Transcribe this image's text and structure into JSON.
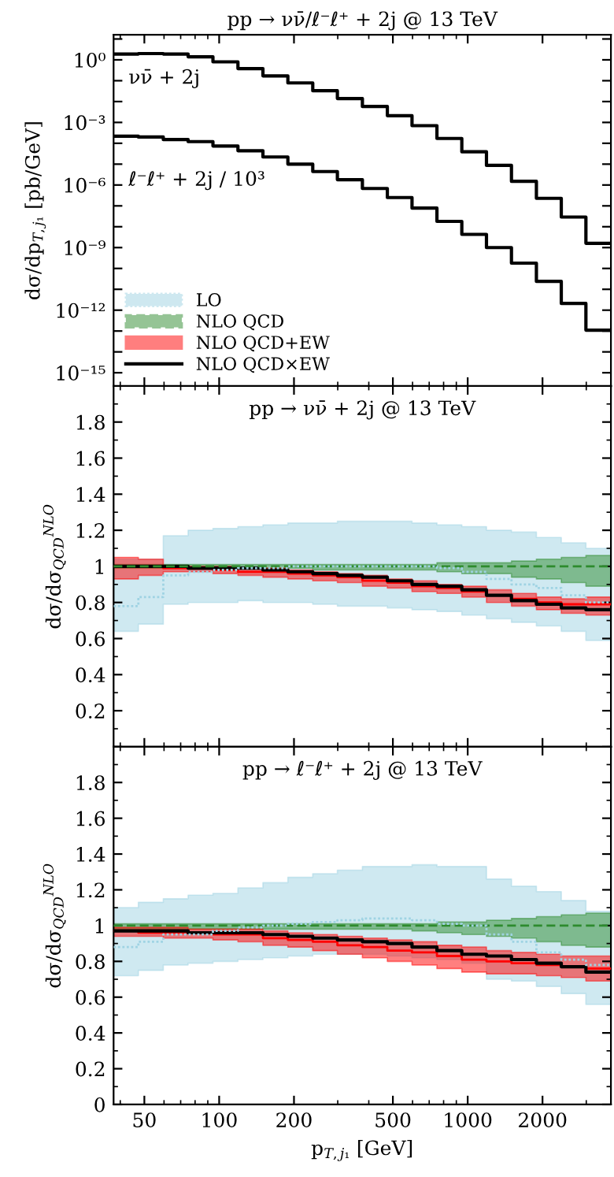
{
  "chart_data": [
    {
      "type": "step",
      "title": "pp → νν̄/ℓ⁻ℓ⁺ + 2j @ 13 TeV",
      "ylabel": "dσ/dp$_{T,j₁}$ [pb/GeV]",
      "log": "xy",
      "tick_labels": "y",
      "annotations": [
        "νν̄ + 2j",
        "ℓ⁻ℓ⁺ + 2j / 10³"
      ],
      "x": [
        37.6,
        47.3,
        59.6,
        75.0,
        94.4,
        119,
        150,
        189,
        238,
        299,
        377,
        475,
        597,
        752,
        947,
        1190,
        1500,
        1890,
        2380,
        2990,
        3770
      ],
      "xlim": [
        37.6,
        3770
      ],
      "xticks": [
        50,
        100,
        200,
        500,
        1000,
        2000
      ],
      "ylim": [
        2.3e-16,
        16
      ],
      "yticks": [
        {
          "value": 1e-15,
          "label": "10⁻¹⁵"
        },
        {
          "value": 1e-14,
          "label": null
        },
        {
          "value": 1e-13,
          "label": null
        },
        {
          "value": 1e-12,
          "label": "10⁻¹²"
        },
        {
          "value": 1e-11,
          "label": null
        },
        {
          "value": 1e-10,
          "label": null
        },
        {
          "value": 1e-09,
          "label": "10⁻⁹"
        },
        {
          "value": 1e-08,
          "label": null
        },
        {
          "value": 1e-07,
          "label": null
        },
        {
          "value": 1e-06,
          "label": "10⁻⁶"
        },
        {
          "value": 1e-05,
          "label": null
        },
        {
          "value": 0.0001,
          "label": null
        },
        {
          "value": 0.001,
          "label": "10⁻³"
        },
        {
          "value": 0.01,
          "label": null
        },
        {
          "value": 0.1,
          "label": null
        },
        {
          "value": 1,
          "label": "10⁰"
        },
        {
          "value": 10,
          "label": null
        }
      ],
      "series": [
        {
          "color": "#000000",
          "line_style": "solid",
          "values": [
            1.9,
            2.0,
            1.9,
            1.4,
            0.8,
            0.38,
            0.17,
            0.078,
            0.033,
            0.014,
            0.0058,
            0.0021,
            0.0007,
            0.00017,
            3.9e-05,
            8.7e-06,
            1.5e-06,
            2.3e-07,
            2.9e-08,
            1.6e-09,
            1.6e-09
          ]
        },
        {
          "color": "#000000",
          "line_style": "solid",
          "values": [
            0.00022,
            0.0002,
            0.00015,
            0.00012,
            7.4e-05,
            4.4e-05,
            2.2e-05,
            1e-05,
            4.4e-06,
            1.8e-06,
            6.8e-07,
            2.5e-07,
            7.8e-08,
            1.8e-08,
            4.3e-09,
            1e-09,
            1.8e-10,
            2.4e-11,
            2.1e-12,
            1.1e-13,
            1.1e-13
          ]
        }
      ]
    },
    {
      "type": "step",
      "title": "pp → νν̄ + 2j @ 13 TeV",
      "ylabel": "dσ/dσ$_{QCD}$$^{NLO}$",
      "log": "x",
      "tick_labels": "y",
      "legend": "top left",
      "x": [
        37.6,
        47.3,
        59.6,
        75.0,
        94.4,
        119,
        150,
        189,
        238,
        299,
        377,
        475,
        597,
        752,
        947,
        1190,
        1500,
        1890,
        2380,
        2990,
        3770
      ],
      "xlim": [
        37.6,
        3770
      ],
      "xticks": [
        50,
        100,
        200,
        500,
        1000,
        2000
      ],
      "ylim": [
        0,
        2
      ],
      "yticks": [
        {
          "value": 0,
          "label": null
        },
        0.2,
        0.4,
        0.6,
        0.8,
        1,
        1.2,
        1.4,
        1.6,
        1.8
      ],
      "series": [
        {
          "name": "LO",
          "color": "#9fd3e3",
          "line_style": "dotted",
          "values": [
            0.78,
            0.83,
            0.95,
            0.97,
            0.98,
            0.99,
            0.99,
            1.0,
            1.0,
            1.0,
            1.0,
            1.0,
            1.0,
            0.99,
            0.97,
            0.93,
            0.9,
            0.88,
            0.84,
            0.8,
            0.8
          ],
          "lower": [
            0.64,
            0.68,
            0.79,
            0.8,
            0.8,
            0.81,
            0.8,
            0.8,
            0.79,
            0.78,
            0.78,
            0.77,
            0.76,
            0.75,
            0.73,
            0.71,
            0.69,
            0.67,
            0.64,
            0.59,
            0.59
          ],
          "upper": [
            1.04,
            1.04,
            1.17,
            1.2,
            1.21,
            1.22,
            1.23,
            1.24,
            1.24,
            1.25,
            1.25,
            1.25,
            1.24,
            1.23,
            1.22,
            1.2,
            1.19,
            1.16,
            1.13,
            1.1,
            1.1
          ]
        },
        {
          "name": "NLO QCD",
          "color": "#2e8b2e",
          "line_style": "dashed",
          "values": [
            1,
            1,
            1,
            1,
            1,
            1,
            1,
            1,
            1,
            1,
            1,
            1,
            1,
            1,
            1,
            1,
            1,
            1,
            1,
            1,
            1
          ],
          "lower": [
            0.99,
            0.99,
            0.99,
            0.99,
            0.99,
            0.99,
            0.99,
            0.99,
            0.98,
            0.98,
            0.98,
            0.98,
            0.98,
            0.97,
            0.96,
            0.96,
            0.94,
            0.93,
            0.91,
            0.89,
            0.89
          ],
          "upper": [
            1.01,
            1.01,
            1.01,
            1.01,
            1.01,
            1.01,
            1.01,
            1.01,
            1.01,
            1.01,
            1.01,
            1.01,
            1.01,
            1.02,
            1.02,
            1.02,
            1.03,
            1.04,
            1.05,
            1.06,
            1.06
          ]
        },
        {
          "name": "NLO QCD+EW",
          "color": "#ff0000",
          "line_style": "solid",
          "values": [
            1.0,
            1.0,
            0.99,
            0.99,
            0.98,
            0.97,
            0.97,
            0.96,
            0.95,
            0.94,
            0.92,
            0.91,
            0.89,
            0.88,
            0.86,
            0.84,
            0.82,
            0.8,
            0.79,
            0.79,
            0.79
          ],
          "lower": [
            0.93,
            0.95,
            0.97,
            0.97,
            0.96,
            0.95,
            0.94,
            0.93,
            0.92,
            0.91,
            0.89,
            0.88,
            0.86,
            0.85,
            0.83,
            0.8,
            0.78,
            0.76,
            0.74,
            0.73,
            0.73
          ],
          "upper": [
            1.05,
            1.04,
            1.0,
            1.0,
            1.0,
            0.99,
            0.99,
            0.98,
            0.97,
            0.96,
            0.95,
            0.93,
            0.92,
            0.9,
            0.89,
            0.87,
            0.85,
            0.83,
            0.82,
            0.83,
            0.83
          ]
        },
        {
          "name": "NLO QCD×EW",
          "color": "#000000",
          "line_style": "solid",
          "values": [
            1.0,
            1.0,
            1.0,
            0.99,
            0.99,
            0.99,
            0.98,
            0.97,
            0.96,
            0.95,
            0.94,
            0.92,
            0.9,
            0.89,
            0.87,
            0.84,
            0.81,
            0.79,
            0.77,
            0.76,
            0.76
          ]
        }
      ]
    },
    {
      "type": "step",
      "title": "pp → ℓ⁻ℓ⁺ + 2j @ 13 TeV",
      "xlabel": "p$_{T,j₁}$ [GeV]",
      "ylabel": "dσ/dσ$_{QCD}$$^{NLO}$",
      "log": "x",
      "x": [
        37.6,
        47.3,
        59.6,
        75.0,
        94.4,
        119,
        150,
        189,
        238,
        299,
        377,
        475,
        597,
        752,
        947,
        1190,
        1500,
        1890,
        2380,
        2990,
        3770
      ],
      "xlim": [
        37.6,
        3770
      ],
      "xticks": [
        50,
        100,
        200,
        500,
        1000,
        2000
      ],
      "ylim": [
        0,
        2
      ],
      "yticks": [
        0,
        0.2,
        0.4,
        0.6,
        0.8,
        1,
        1.2,
        1.4,
        1.6,
        1.8
      ],
      "series": [
        {
          "color": "#9fd3e3",
          "line_style": "dotted",
          "values": [
            0.88,
            0.91,
            0.95,
            0.95,
            0.97,
            0.99,
            1.0,
            1.01,
            1.02,
            1.03,
            1.04,
            1.04,
            1.03,
            1.01,
            1.0,
            0.95,
            0.91,
            0.85,
            0.81,
            0.78,
            0.78
          ],
          "lower": [
            0.72,
            0.75,
            0.78,
            0.79,
            0.8,
            0.81,
            0.82,
            0.83,
            0.84,
            0.84,
            0.84,
            0.83,
            0.82,
            0.81,
            0.79,
            0.7,
            0.69,
            0.66,
            0.62,
            0.56,
            0.56
          ],
          "upper": [
            1.1,
            1.13,
            1.15,
            1.17,
            1.18,
            1.21,
            1.24,
            1.27,
            1.29,
            1.31,
            1.33,
            1.33,
            1.34,
            1.33,
            1.33,
            1.26,
            1.22,
            1.19,
            1.14,
            1.08,
            1.08
          ]
        },
        {
          "color": "#2e8b2e",
          "line_style": "dashed",
          "values": [
            1,
            1,
            1,
            1,
            1,
            1,
            1,
            1,
            1,
            1,
            1,
            1,
            1,
            1,
            1,
            1,
            1,
            1,
            1,
            1,
            1
          ],
          "lower": [
            0.98,
            0.98,
            0.98,
            0.98,
            0.98,
            0.98,
            0.98,
            0.98,
            0.98,
            0.98,
            0.98,
            0.98,
            0.97,
            0.96,
            0.95,
            0.94,
            0.93,
            0.91,
            0.89,
            0.88,
            0.88
          ],
          "upper": [
            1.01,
            1.01,
            1.01,
            1.01,
            1.01,
            1.01,
            1.01,
            1.01,
            1.01,
            1.01,
            1.01,
            1.01,
            1.01,
            1.02,
            1.02,
            1.03,
            1.04,
            1.05,
            1.06,
            1.07,
            1.07
          ]
        },
        {
          "color": "#ff0000",
          "line_style": "solid",
          "values": [
            0.97,
            0.96,
            0.96,
            0.96,
            0.95,
            0.95,
            0.93,
            0.92,
            0.91,
            0.89,
            0.88,
            0.86,
            0.85,
            0.83,
            0.81,
            0.8,
            0.79,
            0.78,
            0.77,
            0.76,
            0.76
          ],
          "lower": [
            0.94,
            0.94,
            0.93,
            0.93,
            0.92,
            0.91,
            0.89,
            0.88,
            0.86,
            0.84,
            0.82,
            0.8,
            0.78,
            0.76,
            0.74,
            0.73,
            0.73,
            0.72,
            0.71,
            0.69,
            0.69
          ],
          "upper": [
            0.99,
            0.99,
            0.99,
            0.98,
            0.98,
            0.98,
            0.97,
            0.96,
            0.95,
            0.94,
            0.93,
            0.92,
            0.91,
            0.89,
            0.88,
            0.86,
            0.85,
            0.84,
            0.83,
            0.83,
            0.83
          ]
        },
        {
          "color": "#000000",
          "line_style": "solid",
          "values": [
            0.97,
            0.97,
            0.97,
            0.96,
            0.96,
            0.96,
            0.95,
            0.94,
            0.93,
            0.92,
            0.91,
            0.9,
            0.88,
            0.86,
            0.84,
            0.83,
            0.81,
            0.79,
            0.77,
            0.74,
            0.74
          ]
        }
      ]
    }
  ]
}
